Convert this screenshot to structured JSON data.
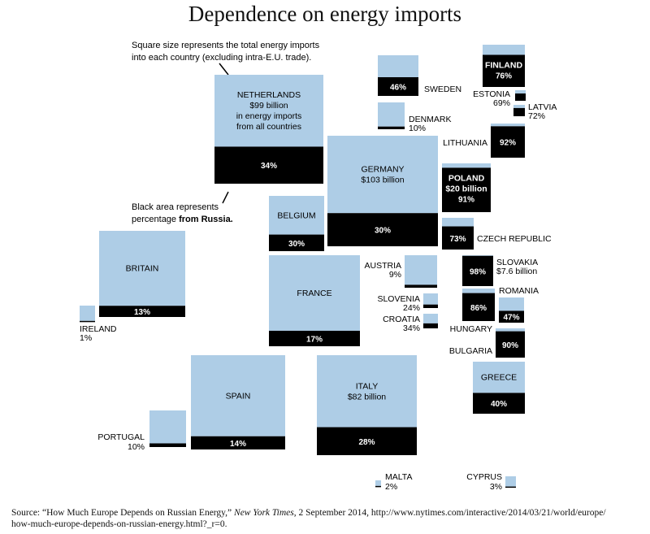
{
  "title": "Dependence on energy imports",
  "notes": {
    "size_line1": "Square size represents the total energy imports",
    "size_line2": "into each country (excluding intra-E.U. trade).",
    "black_line1": "Black area represents",
    "black_line2_a": "percentage ",
    "black_line2_b": "from Russia."
  },
  "source": {
    "prefix": "Source: “How Much Europe Depends on Russian Energy,” ",
    "publication": "New York Times",
    "suffix": ", 2 September 2014, http://www.nytimes.com/interactive/2014/03/21/world/europe/",
    "line2": "how-much-europe-depends-on-russian-energy.html?_r=0."
  },
  "colors": {
    "imports": "#aecde6",
    "russia": "#000000"
  },
  "chart_data": {
    "type": "proportional-square-map",
    "title": "Dependence on energy imports",
    "value_meaning": "percentage of energy imports from Russia",
    "series": [
      {
        "country": "NETHERLANDS",
        "pct_from_russia": 34,
        "imports": "$99 billion",
        "label_extra": [
          "in energy imports",
          "from all countries"
        ]
      },
      {
        "country": "GERMANY",
        "pct_from_russia": 30,
        "imports": "$103 billion"
      },
      {
        "country": "BELGIUM",
        "pct_from_russia": 30
      },
      {
        "country": "BRITAIN",
        "pct_from_russia": 13
      },
      {
        "country": "IRELAND",
        "pct_from_russia": 1
      },
      {
        "country": "FRANCE",
        "pct_from_russia": 17
      },
      {
        "country": "SPAIN",
        "pct_from_russia": 14
      },
      {
        "country": "PORTUGAL",
        "pct_from_russia": 10
      },
      {
        "country": "ITALY",
        "pct_from_russia": 28,
        "imports": "$82 billion"
      },
      {
        "country": "SWEDEN",
        "pct_from_russia": 46
      },
      {
        "country": "DENMARK",
        "pct_from_russia": 10
      },
      {
        "country": "FINLAND",
        "pct_from_russia": 76
      },
      {
        "country": "ESTONIA",
        "pct_from_russia": 69
      },
      {
        "country": "LATVIA",
        "pct_from_russia": 72
      },
      {
        "country": "LITHUANIA",
        "pct_from_russia": 92
      },
      {
        "country": "POLAND",
        "pct_from_russia": 91,
        "imports": "$20 billion"
      },
      {
        "country": "CZECH REPUBLIC",
        "pct_from_russia": 73
      },
      {
        "country": "AUSTRIA",
        "pct_from_russia": 9
      },
      {
        "country": "SLOVAKIA",
        "pct_from_russia": 98,
        "imports": "$7.6 billion"
      },
      {
        "country": "SLOVENIA",
        "pct_from_russia": 24
      },
      {
        "country": "CROATIA",
        "pct_from_russia": 34
      },
      {
        "country": "HUNGARY",
        "pct_from_russia": 86
      },
      {
        "country": "ROMANIA",
        "pct_from_russia": 47
      },
      {
        "country": "BULGARIA",
        "pct_from_russia": 90
      },
      {
        "country": "GREECE",
        "pct_from_russia": 40
      },
      {
        "country": "MALTA",
        "pct_from_russia": 2
      },
      {
        "country": "CYPRUS",
        "pct_from_russia": 3
      }
    ]
  }
}
